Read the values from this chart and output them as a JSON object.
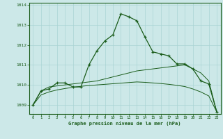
{
  "main_line": [
    1009.0,
    1009.7,
    1009.8,
    1010.1,
    1010.1,
    1009.9,
    1009.9,
    1011.0,
    1011.7,
    1012.2,
    1012.5,
    1013.55,
    1013.4,
    1013.2,
    1012.4,
    1011.65,
    1011.55,
    1011.45,
    1011.05,
    1011.05,
    1010.8,
    1010.2,
    1010.05,
    1008.65
  ],
  "upper_line": [
    1009.0,
    1009.7,
    1009.9,
    1009.95,
    1010.0,
    1010.05,
    1010.1,
    1010.15,
    1010.2,
    1010.3,
    1010.4,
    1010.5,
    1010.6,
    1010.7,
    1010.75,
    1010.8,
    1010.85,
    1010.9,
    1010.95,
    1011.0,
    1010.8,
    1010.6,
    1010.2,
    1008.65
  ],
  "lower_line": [
    1009.0,
    1009.5,
    1009.65,
    1009.75,
    1009.82,
    1009.88,
    1009.93,
    1009.97,
    1010.0,
    1010.03,
    1010.06,
    1010.09,
    1010.12,
    1010.15,
    1010.13,
    1010.1,
    1010.07,
    1010.03,
    1009.98,
    1009.92,
    1009.8,
    1009.65,
    1009.45,
    1008.65
  ],
  "hours": [
    0,
    1,
    2,
    3,
    4,
    5,
    6,
    7,
    8,
    9,
    10,
    11,
    12,
    13,
    14,
    15,
    16,
    17,
    18,
    19,
    20,
    21,
    22,
    23
  ],
  "bg_color": "#cce8e8",
  "grid_color": "#aad4d4",
  "line_color": "#1a5c1a",
  "ylabel_values": [
    1009,
    1010,
    1011,
    1012,
    1013,
    1014
  ],
  "ylim": [
    1008.55,
    1014.1
  ],
  "xlabel": "Graphe pression niveau de la mer (hPa)",
  "tick_color": "#1a5c1a",
  "spine_color": "#1a5c1a"
}
